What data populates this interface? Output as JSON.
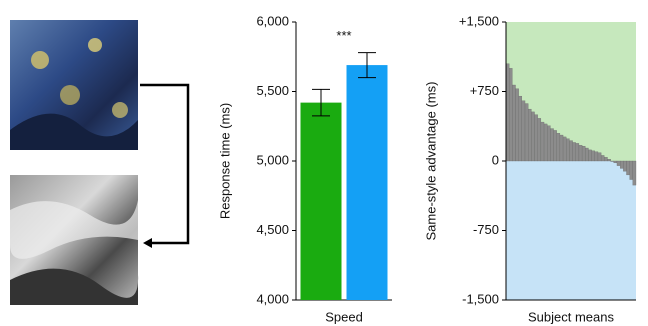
{
  "chart_data": [
    {
      "type": "bar",
      "categories": [
        "Speed"
      ],
      "y_label": "Response time (ms)",
      "series": [
        {
          "color": "#1aab10",
          "values": [
            5420
          ],
          "errors": [
            95
          ]
        },
        {
          "color": "#14a0f5",
          "values": [
            5690
          ],
          "errors": [
            90
          ]
        }
      ],
      "annotation": "***",
      "ylim": [
        4000,
        6000
      ],
      "yticks": [
        {
          "value": 4000,
          "label": "4,000"
        },
        {
          "value": 4500,
          "label": "4,500"
        },
        {
          "value": 5000,
          "label": "5,000"
        },
        {
          "value": 5500,
          "label": "5,500"
        },
        {
          "value": 6000,
          "label": "6,000"
        }
      ]
    },
    {
      "type": "column-strip",
      "x_label": "Subject means",
      "y_label": "Same-style advantage (ms)",
      "color": "#8c8c8c",
      "positive_color": "#c6e8bd",
      "negative_color": "#c6e3f7",
      "values": [
        1050,
        1000,
        820,
        780,
        700,
        650,
        620,
        560,
        530,
        500,
        460,
        420,
        400,
        380,
        350,
        330,
        300,
        280,
        260,
        240,
        220,
        200,
        190,
        170,
        160,
        140,
        120,
        110,
        100,
        90,
        60,
        40,
        20,
        0,
        -20,
        -50,
        -80,
        -110,
        -150,
        -200,
        -260
      ],
      "ylim": [
        -1500,
        1500
      ],
      "yticks": [
        {
          "value": 1500,
          "label": "+1,500"
        },
        {
          "value": 750,
          "label": "+750"
        },
        0,
        {
          "value": -750,
          "label": "-750"
        },
        {
          "value": -1500,
          "label": "-1,500"
        }
      ]
    }
  ]
}
